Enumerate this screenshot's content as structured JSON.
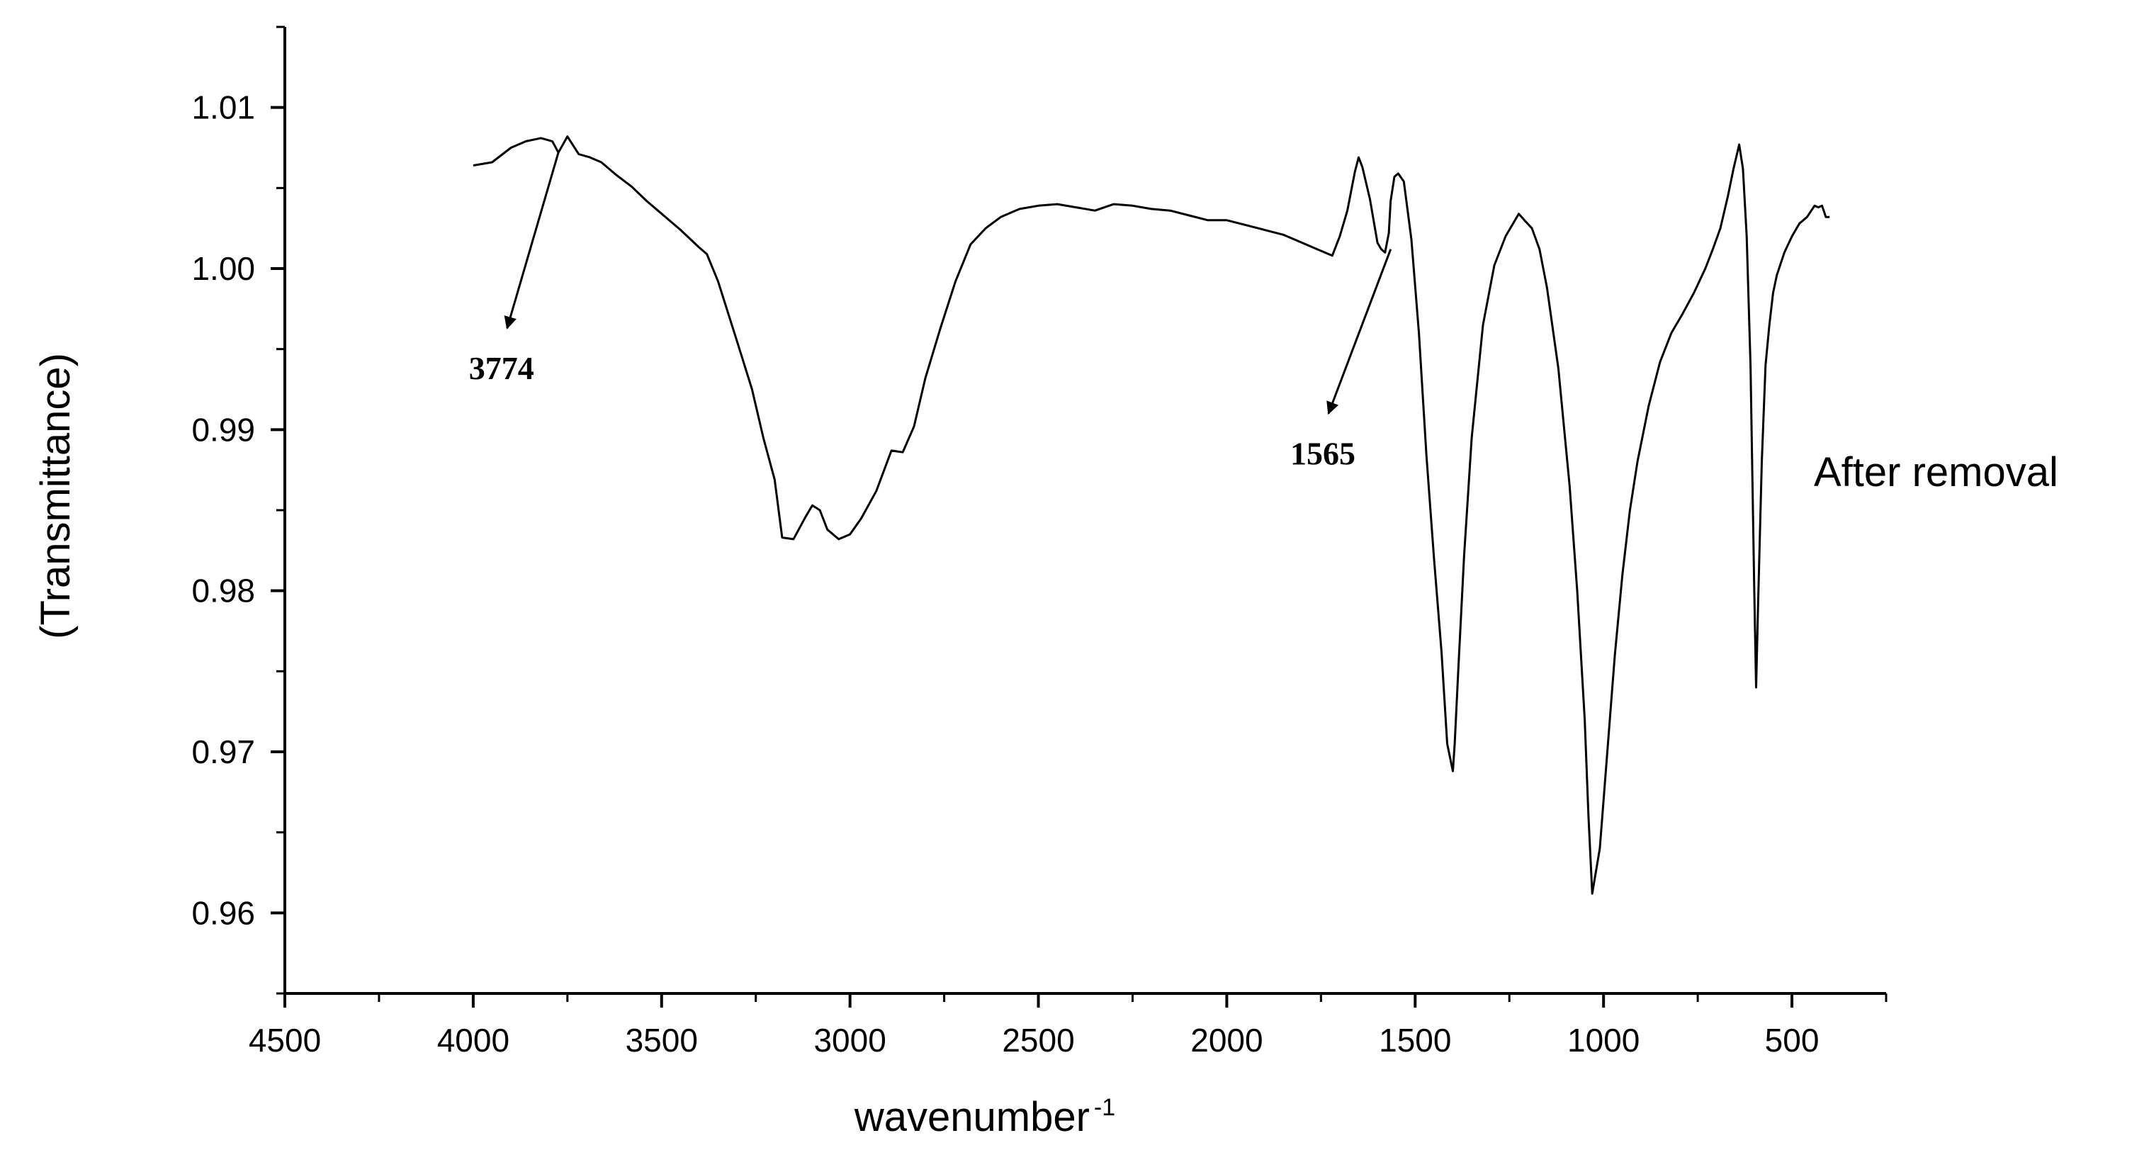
{
  "chart_data": {
    "type": "line",
    "title": "",
    "xlabel": "wavenumber",
    "xlabel_sup": "-1",
    "ylabel": "(Transmittance)",
    "xlim": [
      4500,
      250
    ],
    "ylim": [
      0.955,
      1.015
    ],
    "x_reversed": true,
    "x_ticks": [
      4500,
      4000,
      3500,
      3000,
      2500,
      2000,
      1500,
      1000,
      500
    ],
    "x_tick_labels": [
      "4500",
      "4000",
      "3500",
      "3000",
      "2500",
      "2000",
      "1500",
      "1000",
      "500"
    ],
    "y_ticks": [
      0.96,
      0.97,
      0.98,
      0.99,
      1.0,
      1.01
    ],
    "y_tick_labels": [
      "0.96",
      "0.97",
      "0.98",
      "0.99",
      "1.00",
      "1.01"
    ],
    "grid": false,
    "legend": "none",
    "series": [
      {
        "name": "After removal",
        "color": "#000000",
        "x": [
          4000,
          3950,
          3900,
          3860,
          3820,
          3790,
          3774,
          3750,
          3720,
          3690,
          3660,
          3620,
          3580,
          3540,
          3500,
          3450,
          3400,
          3380,
          3350,
          3300,
          3260,
          3230,
          3200,
          3180,
          3150,
          3120,
          3100,
          3080,
          3060,
          3030,
          3000,
          2970,
          2930,
          2890,
          2860,
          2830,
          2800,
          2760,
          2720,
          2680,
          2640,
          2600,
          2550,
          2500,
          2450,
          2400,
          2350,
          2300,
          2250,
          2200,
          2150,
          2100,
          2050,
          2000,
          1950,
          1900,
          1850,
          1800,
          1760,
          1720,
          1700,
          1680,
          1660,
          1650,
          1640,
          1620,
          1600,
          1590,
          1580,
          1570,
          1565,
          1555,
          1545,
          1530,
          1510,
          1490,
          1470,
          1450,
          1430,
          1415,
          1400,
          1395,
          1385,
          1370,
          1350,
          1320,
          1290,
          1260,
          1240,
          1225,
          1210,
          1190,
          1170,
          1150,
          1120,
          1090,
          1070,
          1050,
          1040,
          1030,
          1010,
          990,
          970,
          950,
          930,
          910,
          880,
          850,
          820,
          790,
          760,
          730,
          710,
          690,
          670,
          655,
          645,
          640,
          630,
          620,
          610,
          600,
          595,
          590,
          580,
          570,
          560,
          550,
          540,
          520,
          500,
          480,
          460,
          440,
          430,
          420,
          410,
          400
        ],
        "y": [
          1.0064,
          1.0066,
          1.0075,
          1.0079,
          1.0081,
          1.0079,
          1.0072,
          1.0082,
          1.0071,
          1.0069,
          1.0066,
          1.0058,
          1.0051,
          1.0042,
          1.0034,
          1.0024,
          1.0013,
          1.0009,
          0.9992,
          0.9955,
          0.9925,
          0.9895,
          0.9869,
          0.9833,
          0.9832,
          0.9845,
          0.9853,
          0.985,
          0.9838,
          0.9832,
          0.9835,
          0.9845,
          0.9862,
          0.9887,
          0.9886,
          0.9902,
          0.9932,
          0.9963,
          0.9992,
          1.0015,
          1.0025,
          1.0032,
          1.0037,
          1.0039,
          1.004,
          1.0038,
          1.0036,
          1.004,
          1.0039,
          1.0037,
          1.0036,
          1.0033,
          1.003,
          1.003,
          1.0027,
          1.0024,
          1.0021,
          1.0016,
          1.0012,
          1.0008,
          1.002,
          1.0036,
          1.006,
          1.0069,
          1.0063,
          1.0043,
          1.0016,
          1.0012,
          1.001,
          1.0022,
          1.0042,
          1.0057,
          1.0059,
          1.0054,
          1.0018,
          0.996,
          0.9884,
          0.982,
          0.9762,
          0.9705,
          0.9688,
          0.9705,
          0.9753,
          0.9822,
          0.9895,
          0.9965,
          1.0002,
          1.002,
          1.0028,
          1.0034,
          1.003,
          1.0025,
          1.0012,
          0.9988,
          0.9938,
          0.9865,
          0.98,
          0.972,
          0.966,
          0.9612,
          0.964,
          0.97,
          0.976,
          0.981,
          0.985,
          0.988,
          0.9915,
          0.9942,
          0.996,
          0.9972,
          0.9985,
          1.0,
          1.0012,
          1.0025,
          1.0045,
          1.0062,
          1.0072,
          1.0077,
          1.0062,
          1.002,
          0.994,
          0.98,
          0.974,
          0.979,
          0.988,
          0.994,
          0.9965,
          0.9985,
          0.9996,
          1.001,
          1.002,
          1.0028,
          1.0032,
          1.0039,
          1.0038,
          1.0039,
          1.0032,
          1.0032
        ]
      }
    ],
    "annotations": [
      {
        "text": "3774",
        "arrow_from": [
          3774,
          1.0072
        ],
        "arrow_to": [
          3910,
          0.9963
        ]
      },
      {
        "text": "1565",
        "arrow_from": [
          1565,
          1.0012
        ],
        "arrow_to": [
          1730,
          0.991
        ]
      }
    ]
  }
}
